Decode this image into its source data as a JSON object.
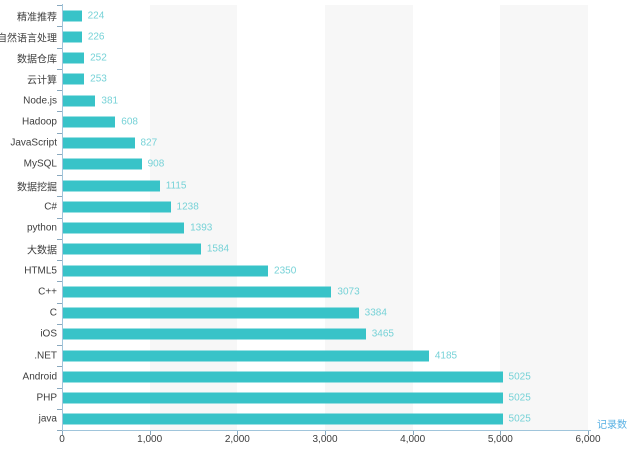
{
  "chart_data": {
    "type": "bar",
    "orientation": "horizontal",
    "title": "",
    "xlabel": "记录数",
    "ylabel": "",
    "xlim": [
      0,
      6000
    ],
    "x_tick_values": [
      0,
      1000,
      2000,
      3000,
      4000,
      5000,
      6000
    ],
    "x_tick_labels": [
      "0",
      "1,000",
      "2,000",
      "3,000",
      "4,000",
      "5,000",
      "6,000"
    ],
    "categories": [
      "精准推荐",
      "自然语言处理",
      "数据仓库",
      "云计算",
      "Node.js",
      "Hadoop",
      "JavaScript",
      "MySQL",
      "数据挖掘",
      "C#",
      "python",
      "大数据",
      "HTML5",
      "C++",
      "C",
      "iOS",
      ".NET",
      "Android",
      "PHP",
      "java"
    ],
    "values": [
      224,
      226,
      252,
      253,
      381,
      608,
      827,
      908,
      1115,
      1238,
      1393,
      1584,
      2350,
      3073,
      3384,
      3465,
      4185,
      5025,
      5025,
      5025
    ],
    "value_labels_shown": true,
    "legend": null,
    "grid": {
      "split_area": "alternating-vertical-bands",
      "band_count": 6
    }
  },
  "style": {
    "background": "#ffffff",
    "bar_color": "#38c3c8",
    "value_label_color": "#76d2d7",
    "band_color": "#f7f7f7",
    "axis_line_color": "#a0c5db",
    "tick_color": "#8aa8bd",
    "text_color": "#3d3d3d",
    "axis_name_color": "#57b0e3"
  }
}
